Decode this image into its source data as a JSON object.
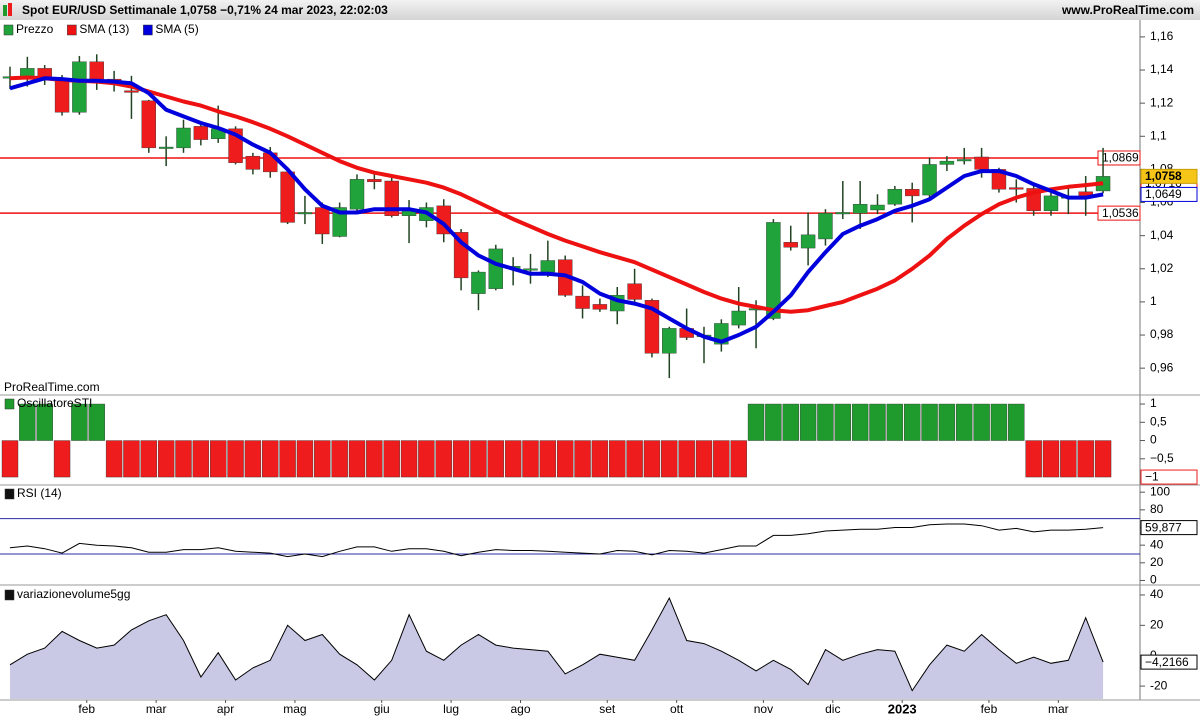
{
  "header": {
    "title": "Spot EUR/USD Settimanale 1,0758 −0,71% 24 mar 2023, 22:02:03",
    "site": "www.ProRealTime.com"
  },
  "chart_data": [
    {
      "type": "candlestick",
      "price_name": "Prezzo",
      "watermark": "ProRealTime.com",
      "up_color": "#1fa33a",
      "down_color": "#ee1c1c",
      "categories": [
        null,
        null,
        null,
        null,
        null,
        "feb",
        null,
        null,
        null,
        "mar",
        null,
        null,
        null,
        "apr",
        null,
        null,
        null,
        "mag",
        null,
        null,
        null,
        null,
        "giu",
        null,
        null,
        null,
        "lug",
        null,
        null,
        null,
        "ago",
        null,
        null,
        null,
        null,
        "set",
        null,
        null,
        null,
        "ott",
        null,
        null,
        null,
        null,
        "nov",
        null,
        null,
        null,
        "dic",
        null,
        null,
        null,
        "2023",
        null,
        null,
        null,
        null,
        "feb",
        null,
        null,
        null,
        "mar",
        null,
        null
      ],
      "open": [
        1.1355,
        1.136,
        1.141,
        1.1345,
        1.1145,
        1.145,
        1.1345,
        1.1275,
        1.1215,
        1.093,
        1.093,
        1.106,
        1.0985,
        1.1045,
        1.088,
        1.09,
        1.0785,
        1.0535,
        1.057,
        1.0395,
        1.056,
        1.074,
        1.073,
        1.052,
        1.049,
        1.058,
        1.042,
        1.005,
        1.008,
        1.02,
        1.0195,
        1.018,
        1.0255,
        1.0035,
        0.9985,
        0.9945,
        1.011,
        1.001,
        0.969,
        0.984,
        0.979,
        0.9745,
        0.986,
        0.9955,
        0.99,
        1.036,
        1.0325,
        1.038,
        1.0535,
        1.0535,
        1.0555,
        1.059,
        1.068,
        1.0645,
        1.083,
        1.086,
        1.0875,
        1.08,
        1.069,
        1.0685,
        1.055,
        1.0635,
        1.0665,
        1.067
      ],
      "high": [
        1.142,
        1.148,
        1.143,
        1.137,
        1.1485,
        1.1495,
        1.1395,
        1.1365,
        1.122,
        1.1,
        1.11,
        1.107,
        1.1185,
        1.106,
        1.09,
        1.0935,
        1.08,
        1.064,
        1.06,
        1.06,
        1.077,
        1.0785,
        1.077,
        1.0615,
        1.06,
        1.062,
        1.044,
        1.019,
        1.0345,
        1.027,
        1.029,
        1.037,
        1.028,
        1.01,
        1.002,
        1.009,
        1.02,
        1.002,
        0.985,
        0.996,
        0.985,
        0.9895,
        1.009,
        1.001,
        1.05,
        1.046,
        1.054,
        1.056,
        1.073,
        1.073,
        1.065,
        1.07,
        1.072,
        1.087,
        1.088,
        1.093,
        1.093,
        1.081,
        1.074,
        1.072,
        1.066,
        1.07,
        1.076,
        1.093
      ],
      "low": [
        1.1285,
        1.13,
        1.131,
        1.1125,
        1.113,
        1.128,
        1.127,
        1.1105,
        1.09,
        1.082,
        1.09,
        1.0945,
        1.096,
        1.083,
        1.077,
        1.075,
        1.047,
        1.047,
        1.035,
        1.039,
        1.054,
        1.068,
        1.051,
        1.0355,
        1.045,
        1.036,
        1.007,
        0.995,
        1.007,
        1.01,
        1.011,
        1.015,
        1.003,
        0.99,
        0.994,
        0.9865,
        0.999,
        0.9665,
        0.954,
        0.977,
        0.963,
        0.97,
        0.984,
        0.972,
        0.989,
        1.031,
        1.022,
        1.034,
        1.05,
        1.044,
        1.053,
        1.058,
        1.048,
        1.063,
        1.079,
        1.083,
        1.075,
        1.066,
        1.06,
        1.052,
        1.052,
        1.053,
        1.052,
        1.0655
      ],
      "close": [
        1.136,
        1.141,
        1.1345,
        1.1145,
        1.145,
        1.1345,
        1.132,
        1.1265,
        1.093,
        1.0935,
        1.105,
        1.098,
        1.1045,
        1.084,
        1.08,
        1.0785,
        1.048,
        1.054,
        1.041,
        1.057,
        1.074,
        1.0725,
        1.052,
        1.056,
        1.057,
        1.041,
        1.0145,
        1.018,
        1.032,
        1.0215,
        1.02,
        1.025,
        1.004,
        0.996,
        0.9955,
        1.004,
        1.0015,
        0.969,
        0.984,
        0.9785,
        0.98,
        0.987,
        0.9945,
        0.996,
        1.048,
        1.033,
        1.0405,
        1.0535,
        1.054,
        1.059,
        1.0585,
        1.068,
        1.064,
        1.083,
        1.085,
        1.086,
        1.08,
        1.068,
        1.068,
        1.055,
        1.064,
        1.0635,
        1.064,
        1.0758
      ],
      "close_last_label": "1,0758",
      "series": [
        {
          "name": "SMA (13)",
          "color": "#ee1111",
          "last_label": "1,0716",
          "values": [
            1.135,
            1.1355,
            1.135,
            1.134,
            1.1335,
            1.133,
            1.132,
            1.13,
            1.127,
            1.124,
            1.121,
            1.1185,
            1.115,
            1.112,
            1.1085,
            1.1045,
            1.1,
            1.095,
            1.09,
            1.085,
            1.081,
            1.078,
            1.076,
            1.074,
            1.072,
            1.069,
            1.065,
            1.06,
            1.055,
            1.05,
            1.0455,
            1.041,
            1.037,
            1.0335,
            1.03,
            1.027,
            1.024,
            1.0195,
            1.015,
            1.0105,
            1.006,
            1.002,
            0.999,
            0.997,
            0.995,
            0.994,
            0.995,
            0.9975,
            1.0,
            1.004,
            1.008,
            1.013,
            1.02,
            1.028,
            1.038,
            1.046,
            1.053,
            1.059,
            1.063,
            1.066,
            1.068,
            1.0695,
            1.0705,
            1.0716
          ]
        },
        {
          "name": "SMA (5)",
          "color": "#0000dd",
          "last_label": "1,0649",
          "values": [
            1.129,
            1.132,
            1.135,
            1.1345,
            1.1335,
            1.1335,
            1.133,
            1.132,
            1.126,
            1.116,
            1.112,
            1.108,
            1.105,
            1.101,
            1.095,
            1.09,
            1.08,
            1.068,
            1.058,
            1.054,
            1.054,
            1.056,
            1.056,
            1.056,
            1.054,
            1.047,
            1.036,
            1.028,
            1.023,
            1.02,
            1.017,
            1.017,
            1.016,
            1.012,
            1.005,
            1.001,
            0.999,
            0.996,
            0.99,
            0.984,
            0.979,
            0.976,
            0.98,
            0.985,
            0.994,
            1.004,
            1.018,
            1.03,
            1.041,
            1.046,
            1.05,
            1.055,
            1.058,
            1.062,
            1.069,
            1.076,
            1.079,
            1.079,
            1.076,
            1.071,
            1.067,
            1.063,
            1.063,
            1.0649
          ]
        }
      ],
      "hline_color": "#ee1111",
      "hlines": [
        {
          "value": 1.0869,
          "label": "1,0869"
        },
        {
          "value": 1.0536,
          "label": "1,0536"
        }
      ],
      "ylim": [
        0.945,
        1.169
      ],
      "yticks": [
        {
          "value": 0.96,
          "label": "0,96"
        },
        {
          "value": 0.98,
          "label": "0,98"
        },
        1,
        {
          "value": 1.02,
          "label": "1,02"
        },
        {
          "value": 1.04,
          "label": "1,04"
        },
        {
          "value": 1.06,
          "label": "1,06"
        },
        {
          "value": 1.08,
          "label": "1,08"
        },
        {
          "value": 1.1,
          "label": "1,1"
        },
        {
          "value": 1.12,
          "label": "1,12"
        },
        {
          "value": 1.14,
          "label": "1,14"
        },
        {
          "value": 1.16,
          "label": "1,16"
        }
      ]
    },
    {
      "type": "bar",
      "name": "OscillatoreSTI",
      "pos_color": "#1f9a2c",
      "neg_color": "#ee1c1c",
      "values": [
        -1,
        1,
        1,
        -1,
        1,
        1,
        -1,
        -1,
        -1,
        -1,
        -1,
        -1,
        -1,
        -1,
        -1,
        -1,
        -1,
        -1,
        -1,
        -1,
        -1,
        -1,
        -1,
        -1,
        -1,
        -1,
        -1,
        -1,
        -1,
        -1,
        -1,
        -1,
        -1,
        -1,
        -1,
        -1,
        -1,
        -1,
        -1,
        -1,
        -1,
        -1,
        -1,
        1,
        1,
        1,
        1,
        1,
        1,
        1,
        1,
        1,
        1,
        1,
        1,
        1,
        1,
        1,
        1,
        -1,
        -1,
        -1,
        -1,
        -1
      ],
      "last_label": "−1",
      "ylim": [
        -1.19,
        1.22
      ],
      "yticks": [
        {
          "value": -0.5,
          "label": "−0,5"
        },
        0,
        {
          "value": 0.5,
          "label": "0,5"
        },
        1
      ]
    },
    {
      "type": "line",
      "name": "RSI (14)",
      "color": "#000000",
      "values": [
        37,
        39,
        36,
        31,
        42,
        40,
        39,
        37,
        32,
        32,
        35,
        35,
        37,
        33,
        32,
        31,
        27,
        30,
        27,
        33,
        38,
        38,
        33,
        36,
        36,
        33,
        28,
        32,
        35,
        34,
        34,
        33,
        32,
        31,
        30,
        34,
        33,
        29,
        34,
        33,
        31,
        35,
        39,
        39,
        51,
        51,
        53,
        56,
        57,
        58,
        58,
        60,
        60,
        63,
        64,
        64,
        62,
        57,
        59,
        55,
        57,
        57,
        58,
        59.877
      ],
      "last_label": "59,877",
      "levels": [
        70,
        30
      ],
      "level_color": "#2b2ba8",
      "ylim": [
        -4,
        107
      ],
      "yticks": [
        0,
        20,
        40,
        60,
        80,
        100
      ]
    },
    {
      "type": "area",
      "name": "variazionevolume5gg",
      "color": "#000000",
      "fill": "#c9c9e6",
      "values": [
        -6,
        1,
        5,
        16,
        10,
        5,
        7,
        17,
        23,
        27,
        10,
        -14,
        2,
        -16,
        -8,
        -3,
        20,
        10,
        14,
        1,
        -6,
        -16,
        -3,
        27,
        3,
        -3,
        7,
        14,
        7,
        5,
        4,
        3,
        -12,
        -6,
        1,
        -1,
        -3,
        17,
        38,
        10,
        8,
        3,
        -3,
        -10,
        -3,
        -9,
        -19,
        4,
        -3,
        1,
        4,
        3,
        -23,
        -6,
        7,
        3,
        14,
        4,
        -5,
        -1,
        -5,
        -3,
        25,
        -4.2166
      ],
      "last_label": "−4,2166",
      "ylim": [
        -28.5,
        45.9
      ],
      "yticks": [
        -20,
        0,
        20,
        40
      ]
    }
  ]
}
